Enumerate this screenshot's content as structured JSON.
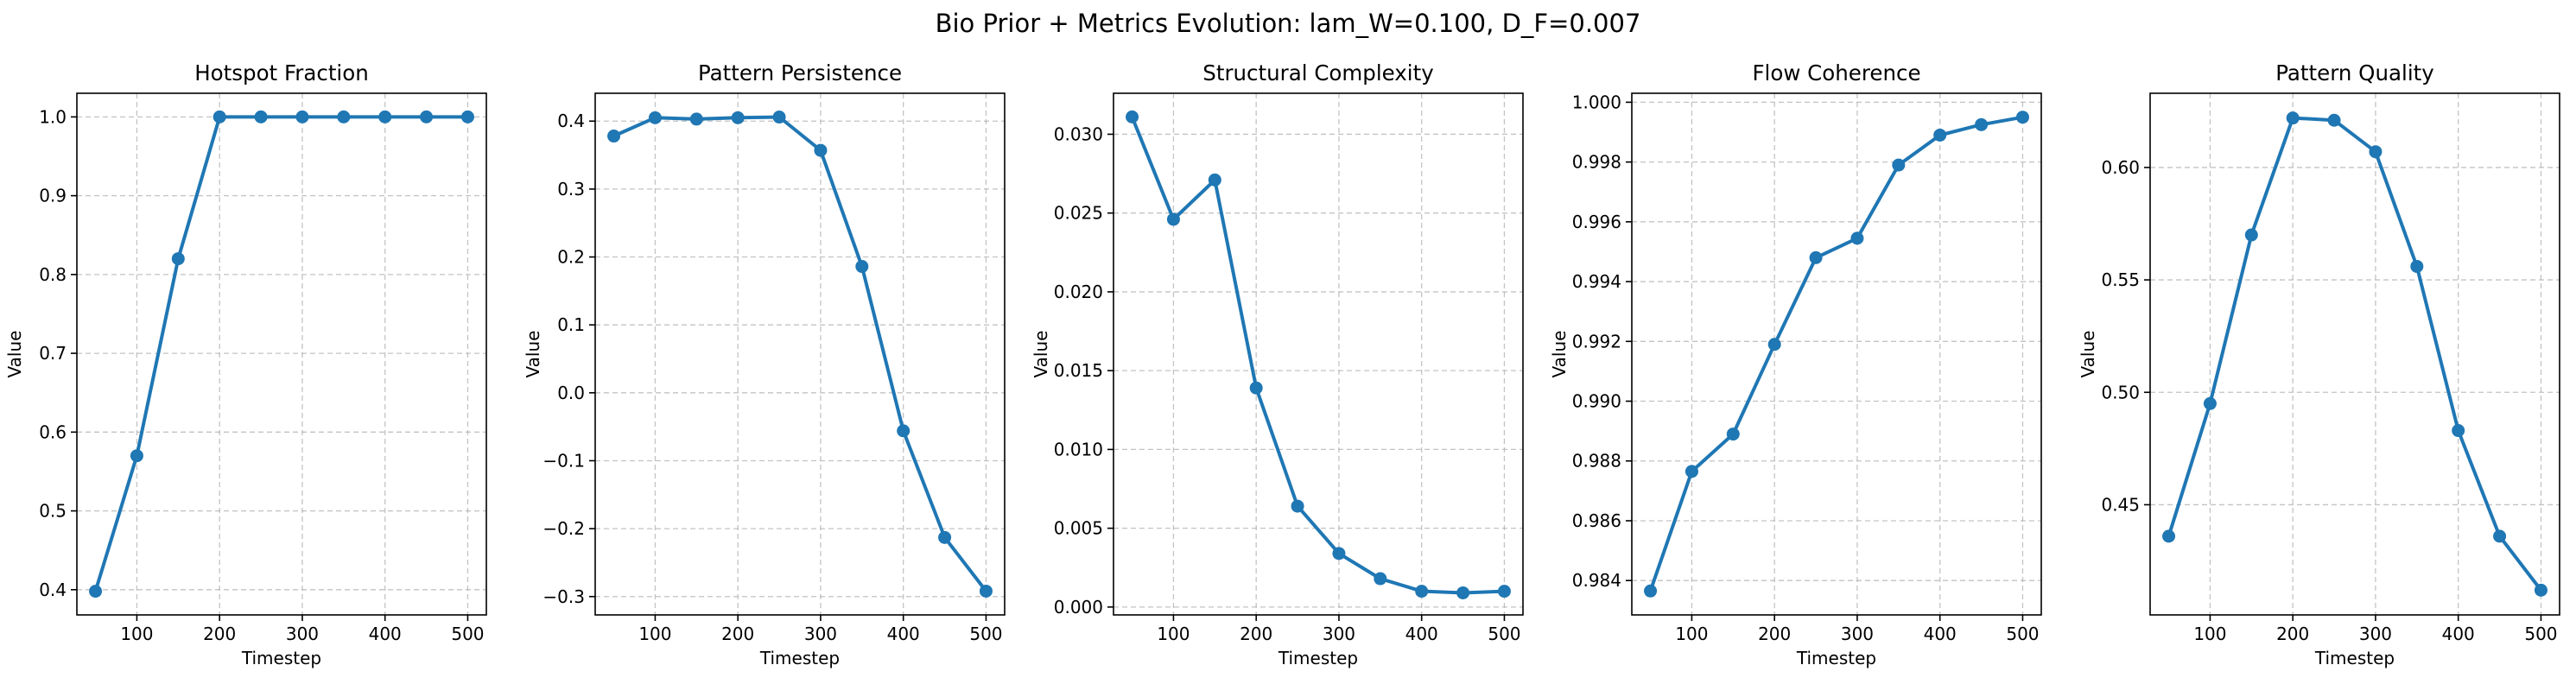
{
  "figure": {
    "suptitle": "Bio Prior + Metrics Evolution: lam_W=0.100, D_F=0.007"
  },
  "chart_data": [
    {
      "type": "line",
      "title": "Hotspot Fraction",
      "xlabel": "Timestep",
      "ylabel": "Value",
      "x": [
        50,
        100,
        150,
        200,
        250,
        300,
        350,
        400,
        450,
        500
      ],
      "values": [
        0.398,
        0.57,
        0.82,
        1.0,
        1.0,
        1.0,
        1.0,
        1.0,
        1.0,
        1.0
      ],
      "xlim": [
        27.5,
        522.5
      ],
      "ylim": [
        0.368,
        1.03
      ],
      "xticks": [
        100,
        200,
        300,
        400,
        500
      ],
      "xtick_labels": [
        "100",
        "200",
        "300",
        "400",
        "500"
      ],
      "yticks": [
        0.4,
        0.5,
        0.6,
        0.7,
        0.8,
        0.9,
        1.0
      ],
      "ytick_labels": [
        "0.4",
        "0.5",
        "0.6",
        "0.7",
        "0.8",
        "0.9",
        "1.0"
      ],
      "color": "#1f77b4",
      "grid": true
    },
    {
      "type": "line",
      "title": "Pattern Persistence",
      "xlabel": "Timestep",
      "ylabel": "Value",
      "x": [
        50,
        100,
        150,
        200,
        250,
        300,
        350,
        400,
        450,
        500
      ],
      "values": [
        0.378,
        0.405,
        0.403,
        0.405,
        0.406,
        0.357,
        0.186,
        -0.056,
        -0.213,
        -0.292
      ],
      "xlim": [
        27.5,
        522.5
      ],
      "ylim": [
        -0.327,
        0.441
      ],
      "xticks": [
        100,
        200,
        300,
        400,
        500
      ],
      "xtick_labels": [
        "100",
        "200",
        "300",
        "400",
        "500"
      ],
      "yticks": [
        -0.3,
        -0.2,
        -0.1,
        0.0,
        0.1,
        0.2,
        0.3,
        0.4
      ],
      "ytick_labels": [
        "−0.3",
        "−0.2",
        "−0.1",
        "0.0",
        "0.1",
        "0.2",
        "0.3",
        "0.4"
      ],
      "color": "#1f77b4",
      "grid": true
    },
    {
      "type": "line",
      "title": "Structural Complexity",
      "xlabel": "Timestep",
      "ylabel": "Value",
      "x": [
        50,
        100,
        150,
        200,
        250,
        300,
        350,
        400,
        450,
        500
      ],
      "values": [
        0.0311,
        0.0246,
        0.0271,
        0.0139,
        0.0064,
        0.0034,
        0.0018,
        0.001,
        0.0009,
        0.001
      ],
      "xlim": [
        27.5,
        522.5
      ],
      "ylim": [
        -0.0005,
        0.0326
      ],
      "xticks": [
        100,
        200,
        300,
        400,
        500
      ],
      "xtick_labels": [
        "100",
        "200",
        "300",
        "400",
        "500"
      ],
      "yticks": [
        0.0,
        0.005,
        0.01,
        0.015,
        0.02,
        0.025,
        0.03
      ],
      "ytick_labels": [
        "0.000",
        "0.005",
        "0.010",
        "0.015",
        "0.020",
        "0.025",
        "0.030"
      ],
      "color": "#1f77b4",
      "grid": true
    },
    {
      "type": "line",
      "title": "Flow Coherence",
      "xlabel": "Timestep",
      "ylabel": "Value",
      "x": [
        50,
        100,
        150,
        200,
        250,
        300,
        350,
        400,
        450,
        500
      ],
      "values": [
        0.98365,
        0.98765,
        0.9889,
        0.9919,
        0.9948,
        0.99545,
        0.9979,
        0.9989,
        0.99925,
        0.9995
      ],
      "xlim": [
        27.5,
        522.5
      ],
      "ylim": [
        0.98285,
        1.0003
      ],
      "xticks": [
        100,
        200,
        300,
        400,
        500
      ],
      "xtick_labels": [
        "100",
        "200",
        "300",
        "400",
        "500"
      ],
      "yticks": [
        0.984,
        0.986,
        0.988,
        0.99,
        0.992,
        0.994,
        0.996,
        0.998,
        1.0
      ],
      "ytick_labels": [
        "0.984",
        "0.986",
        "0.988",
        "0.990",
        "0.992",
        "0.994",
        "0.996",
        "0.998",
        "1.000"
      ],
      "color": "#1f77b4",
      "grid": true
    },
    {
      "type": "line",
      "title": "Pattern Quality",
      "xlabel": "Timestep",
      "ylabel": "Value",
      "x": [
        50,
        100,
        150,
        200,
        250,
        300,
        350,
        400,
        450,
        500
      ],
      "values": [
        0.436,
        0.495,
        0.57,
        0.622,
        0.621,
        0.607,
        0.556,
        0.483,
        0.436,
        0.412
      ],
      "xlim": [
        27.5,
        522.5
      ],
      "ylim": [
        0.401,
        0.633
      ],
      "xticks": [
        100,
        200,
        300,
        400,
        500
      ],
      "xtick_labels": [
        "100",
        "200",
        "300",
        "400",
        "500"
      ],
      "yticks": [
        0.45,
        0.5,
        0.55,
        0.6
      ],
      "ytick_labels": [
        "0.45",
        "0.50",
        "0.55",
        "0.60"
      ],
      "color": "#1f77b4",
      "grid": true
    }
  ]
}
